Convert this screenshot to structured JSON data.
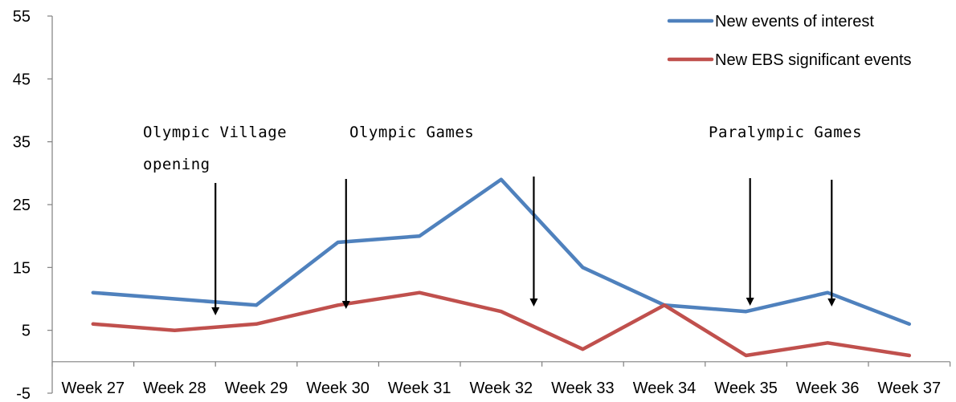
{
  "chart_data": {
    "type": "line",
    "categories": [
      "Week 27",
      "Week 28",
      "Week 29",
      "Week 30",
      "Week 31",
      "Week 32",
      "Week 33",
      "Week 34",
      "Week 35",
      "Week 36",
      "Week 37"
    ],
    "x": [
      0,
      1,
      2,
      2.5,
      3,
      4,
      5,
      6,
      7,
      8,
      9,
      10
    ],
    "series": [
      {
        "name": "New events of interest",
        "color": "#4f81bd",
        "x": [
          0,
          2,
          3,
          4,
          5,
          6,
          7,
          8,
          9,
          10
        ],
        "values": [
          11,
          9,
          19,
          20,
          29,
          15,
          9,
          8,
          11,
          6
        ]
      },
      {
        "name": "New EBS significant events",
        "color": "#c0504d",
        "x": [
          0,
          1,
          2,
          3,
          4,
          5,
          6,
          7,
          8,
          9,
          10
        ],
        "values": [
          6,
          5,
          6,
          9,
          11,
          8,
          2,
          9,
          1,
          3,
          1
        ]
      }
    ],
    "yticks": [
      55,
      45,
      35,
      25,
      15,
      5,
      -5
    ],
    "ylim": [
      -5,
      55
    ],
    "grid": false,
    "legend": "top-right",
    "annotations": [
      {
        "text_lines": [
          "Olympic Village",
          "opening"
        ],
        "arrow_x": 1.5
      },
      {
        "text_lines": [
          "Olympic Games"
        ],
        "arrow_x": 3.1
      },
      {
        "text_lines": [],
        "arrow_x": 5.4
      },
      {
        "text_lines": [
          "Paralympic Games"
        ],
        "arrow_x": 8.05
      },
      {
        "text_lines": [],
        "arrow_x": 9.05
      }
    ]
  }
}
